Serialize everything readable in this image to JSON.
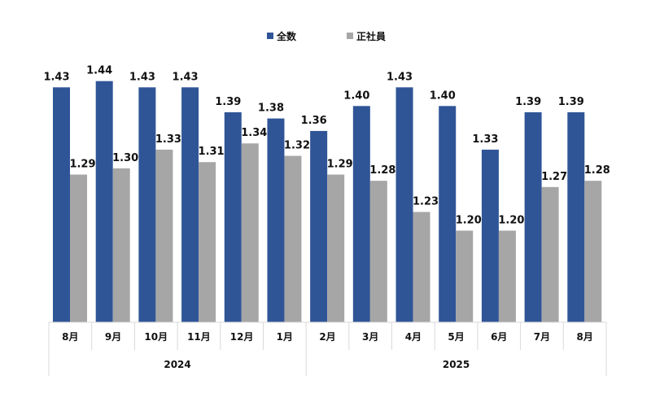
{
  "chart_data": {
    "type": "bar",
    "title": "",
    "xlabel": "",
    "ylabel": "",
    "categories": [
      "8月",
      "9月",
      "10月",
      "11月",
      "12月",
      "1月",
      "2月",
      "3月",
      "4月",
      "5月",
      "6月",
      "7月",
      "8月"
    ],
    "groups": [
      {
        "label": "2024",
        "span": 6
      },
      {
        "label": "2025",
        "span": 7
      }
    ],
    "series": [
      {
        "name": "全数",
        "color": "#2f5597",
        "values": [
          1.43,
          1.44,
          1.43,
          1.43,
          1.39,
          1.38,
          1.36,
          1.4,
          1.43,
          1.4,
          1.33,
          1.39,
          1.39
        ]
      },
      {
        "name": "正社員",
        "color": "#a6a6a6",
        "values": [
          1.29,
          1.3,
          1.33,
          1.31,
          1.34,
          1.32,
          1.29,
          1.28,
          1.23,
          1.2,
          1.2,
          1.27,
          1.28
        ]
      }
    ],
    "ylim": [
      1.053,
      1.45
    ],
    "grid": false,
    "legend": "top-center",
    "data_labels": true
  }
}
